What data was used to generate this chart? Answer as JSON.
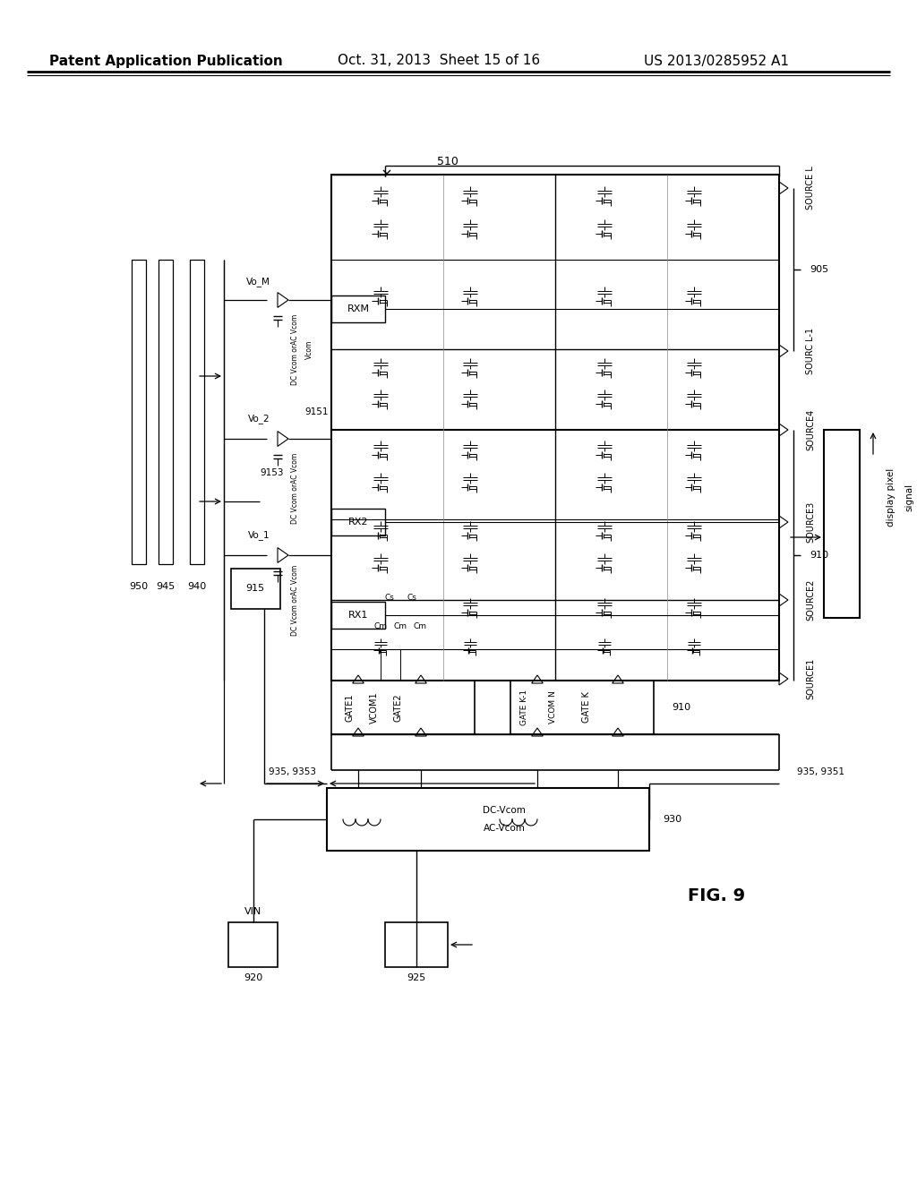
{
  "title_left": "Patent Application Publication",
  "title_center": "Oct. 31, 2013  Sheet 15 of 16",
  "title_right": "US 2013/0285952 A1",
  "fig_label": "FIG. 9",
  "background_color": "#ffffff"
}
